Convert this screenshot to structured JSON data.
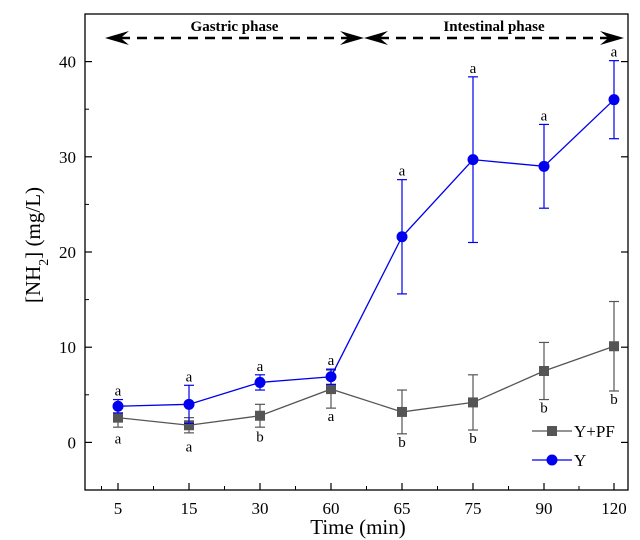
{
  "chart_data": {
    "type": "line",
    "categories": [
      "5",
      "15",
      "30",
      "60",
      "65",
      "75",
      "90",
      "120"
    ],
    "xlabel": "Time (min)",
    "ylabel_prefix": "[NH",
    "ylabel_sub": "2",
    "ylabel_suffix": "] (mg/L)",
    "ylim": [
      -5,
      45
    ],
    "yticks": [
      0,
      10,
      20,
      30,
      40
    ],
    "grid": false,
    "legend_position": "bottom-right",
    "phases": [
      {
        "label": "Gastric phase",
        "from": "5",
        "to": "60"
      },
      {
        "label": "Intestinal phase",
        "from": "60",
        "to": "120"
      }
    ],
    "series": [
      {
        "name": "Y+PF",
        "color": "#555555",
        "marker": "square",
        "values": [
          2.6,
          1.8,
          2.8,
          5.6,
          3.2,
          4.2,
          7.5,
          10.1
        ],
        "errors": [
          1.0,
          0.8,
          1.2,
          2.0,
          2.3,
          2.9,
          3.0,
          4.7
        ],
        "labels": [
          "a",
          "a",
          "b",
          "a",
          "b",
          "b",
          "b",
          "b"
        ]
      },
      {
        "name": "Y",
        "color": "#0000ee",
        "marker": "circle",
        "values": [
          3.8,
          4.0,
          6.3,
          6.9,
          21.6,
          29.7,
          29.0,
          36.0
        ],
        "errors": [
          0.7,
          2.0,
          0.8,
          0.8,
          6.0,
          8.7,
          4.4,
          4.1
        ],
        "labels": [
          "a",
          "a",
          "a",
          "a",
          "a",
          "a",
          "a",
          "a"
        ]
      }
    ]
  }
}
